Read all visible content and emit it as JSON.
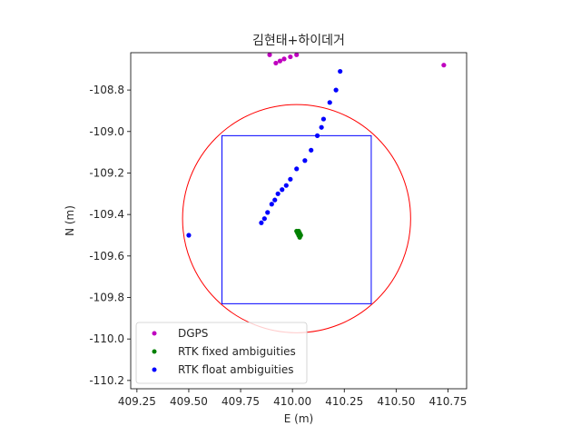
{
  "chart_data": {
    "type": "scatter",
    "title": "김현태+하이데거",
    "xlabel": "E (m)",
    "ylabel": "N (m)",
    "xlim": [
      409.22,
      410.84
    ],
    "ylim": [
      -110.24,
      -108.62
    ],
    "xticks": [
      409.25,
      409.5,
      409.75,
      410.0,
      410.25,
      410.5,
      410.75
    ],
    "xtick_labels": [
      "409.25",
      "409.50",
      "409.75",
      "410.00",
      "410.25",
      "410.50",
      "410.75"
    ],
    "yticks": [
      -110.2,
      -110.0,
      -109.8,
      -109.6,
      -109.4,
      -109.2,
      -109.0,
      -108.8
    ],
    "ytick_labels": [
      "-110.2",
      "-110.0",
      "-109.8",
      "-109.6",
      "-109.4",
      "-109.2",
      "-109.0",
      "-108.8"
    ],
    "grid": false,
    "legend_position": "lower-left",
    "circle": {
      "center": [
        410.02,
        -109.42
      ],
      "radius": 0.55,
      "color": "#ff0000"
    },
    "rectangle": {
      "x": [
        409.66,
        410.38
      ],
      "y": [
        -109.83,
        -109.02
      ],
      "color": "#0000ff"
    },
    "series": [
      {
        "name": "DGPS",
        "color": "#bf00bf",
        "x": [
          409.89,
          409.92,
          409.94,
          409.96,
          409.99,
          410.02,
          410.73
        ],
        "y": [
          -108.63,
          -108.67,
          -108.66,
          -108.65,
          -108.64,
          -108.63,
          -108.68
        ]
      },
      {
        "name": "RTK fixed ambiguities",
        "color": "#008000",
        "x": [
          410.02,
          410.025,
          410.03,
          410.035,
          410.03,
          410.025,
          410.03,
          410.035,
          410.04,
          410.035
        ],
        "y": [
          -109.48,
          -109.49,
          -109.5,
          -109.51,
          -109.495,
          -109.485,
          -109.48,
          -109.49,
          -109.5,
          -109.505
        ]
      },
      {
        "name": "RTK float ambiguities",
        "color": "#0000ff",
        "x": [
          409.5,
          409.85,
          409.865,
          409.88,
          409.9,
          409.915,
          409.93,
          409.95,
          409.97,
          409.99,
          410.02,
          410.06,
          410.09,
          410.12,
          410.14,
          410.15,
          410.18,
          410.21,
          410.23
        ],
        "y": [
          -109.5,
          -109.44,
          -109.42,
          -109.39,
          -109.35,
          -109.33,
          -109.3,
          -109.28,
          -109.26,
          -109.23,
          -109.18,
          -109.14,
          -109.09,
          -109.02,
          -108.98,
          -108.94,
          -108.86,
          -108.8,
          -108.71
        ]
      }
    ]
  }
}
